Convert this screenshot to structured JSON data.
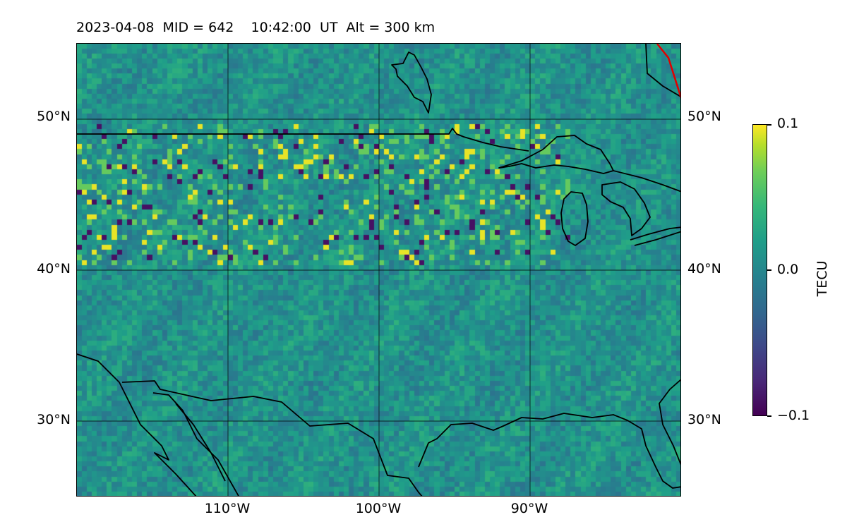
{
  "title": "2023-04-08  MID = 642    10:42:00  UT  Alt = 300 km",
  "map": {
    "lon_range": [
      -120,
      -80
    ],
    "lat_range": [
      25,
      55
    ],
    "lat_labels": [
      "50°N",
      "40°N",
      "30°N"
    ],
    "lon_labels": [
      "110°W",
      "100°W",
      "90°W"
    ],
    "gridlines": true,
    "coastline_color": "#000000",
    "terminator_color": "#e00000"
  },
  "colorbar": {
    "colormap": "viridis",
    "label": "TECU",
    "ticks": [
      "0.1",
      "0.0",
      "−0.1"
    ],
    "vmin": -0.1,
    "vmax": 0.1
  }
}
